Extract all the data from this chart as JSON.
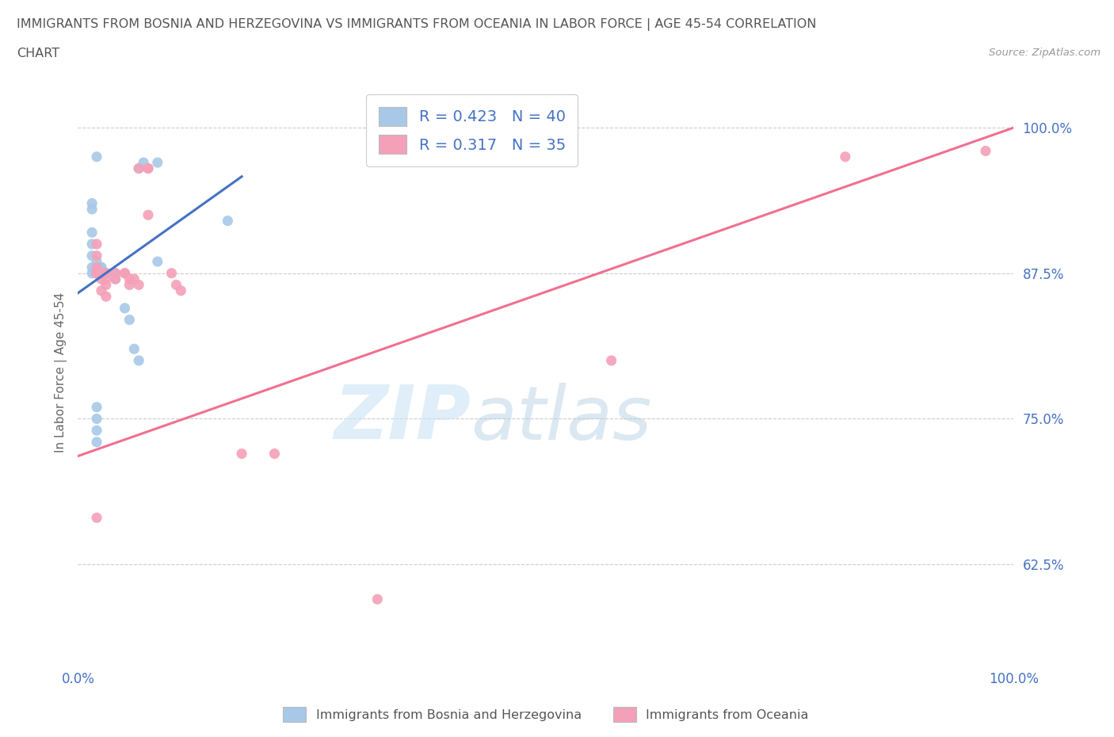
{
  "title_line1": "IMMIGRANTS FROM BOSNIA AND HERZEGOVINA VS IMMIGRANTS FROM OCEANIA IN LABOR FORCE | AGE 45-54 CORRELATION",
  "title_line2": "CHART",
  "source_text": "Source: ZipAtlas.com",
  "ylabel": "In Labor Force | Age 45-54",
  "xlim": [
    0.0,
    1.0
  ],
  "ylim": [
    0.54,
    1.04
  ],
  "yticks": [
    0.625,
    0.75,
    0.875,
    1.0
  ],
  "ytick_labels": [
    "62.5%",
    "75.0%",
    "87.5%",
    "100.0%"
  ],
  "xticks": [
    0.0,
    1.0
  ],
  "xtick_labels": [
    "0.0%",
    "100.0%"
  ],
  "color_blue": "#a8c8e8",
  "color_pink": "#f4a0b8",
  "line_blue": "#4472c4",
  "line_pink": "#f07090",
  "background_color": "#ffffff",
  "blue_scatter_x": [
    0.02,
    0.065,
    0.07,
    0.085,
    0.085,
    0.015,
    0.015,
    0.015,
    0.015,
    0.015,
    0.015,
    0.015,
    0.02,
    0.02,
    0.02,
    0.02,
    0.02,
    0.02,
    0.02,
    0.02,
    0.025,
    0.025,
    0.025,
    0.025,
    0.025,
    0.03,
    0.03,
    0.03,
    0.04,
    0.04,
    0.04,
    0.05,
    0.055,
    0.06,
    0.065,
    0.16,
    0.02,
    0.02,
    0.02,
    0.02
  ],
  "blue_scatter_y": [
    0.975,
    0.965,
    0.97,
    0.97,
    0.885,
    0.935,
    0.93,
    0.91,
    0.9,
    0.89,
    0.88,
    0.875,
    0.885,
    0.88,
    0.875,
    0.875,
    0.875,
    0.875,
    0.875,
    0.875,
    0.88,
    0.88,
    0.875,
    0.875,
    0.875,
    0.875,
    0.875,
    0.875,
    0.875,
    0.875,
    0.87,
    0.845,
    0.835,
    0.81,
    0.8,
    0.92,
    0.76,
    0.75,
    0.74,
    0.73
  ],
  "pink_scatter_x": [
    0.065,
    0.075,
    0.075,
    0.075,
    0.02,
    0.02,
    0.02,
    0.02,
    0.02,
    0.025,
    0.025,
    0.025,
    0.025,
    0.03,
    0.03,
    0.03,
    0.03,
    0.04,
    0.04,
    0.05,
    0.05,
    0.055,
    0.055,
    0.06,
    0.065,
    0.1,
    0.105,
    0.11,
    0.175,
    0.21,
    0.32,
    0.57,
    0.82,
    0.97,
    0.02
  ],
  "pink_scatter_y": [
    0.965,
    0.965,
    0.965,
    0.925,
    0.9,
    0.89,
    0.88,
    0.875,
    0.875,
    0.875,
    0.875,
    0.87,
    0.86,
    0.875,
    0.87,
    0.865,
    0.855,
    0.875,
    0.87,
    0.875,
    0.875,
    0.87,
    0.865,
    0.87,
    0.865,
    0.875,
    0.865,
    0.86,
    0.72,
    0.72,
    0.595,
    0.8,
    0.975,
    0.98,
    0.665
  ],
  "blue_trend_x": [
    0.0,
    0.175
  ],
  "blue_trend_y": [
    0.858,
    0.958
  ],
  "pink_trend_x": [
    0.0,
    1.0
  ],
  "pink_trend_y": [
    0.718,
    1.0
  ]
}
